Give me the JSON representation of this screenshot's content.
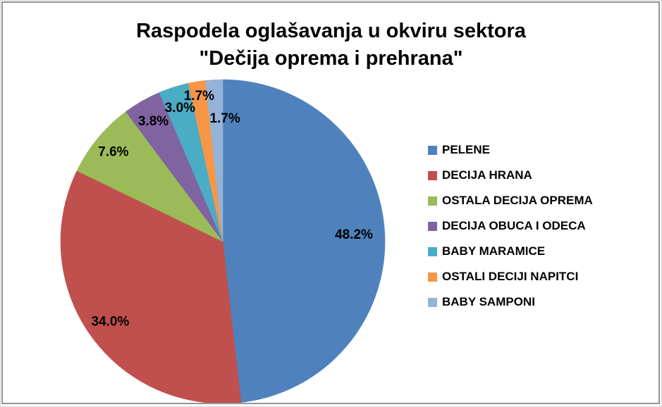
{
  "page": {
    "background_color": "#ffffff",
    "frame_border_color": "#969696"
  },
  "chart_data": {
    "type": "pie",
    "title": "Raspodela oglašavanja u okviru sektora \"Dečija oprema i prehrana\"",
    "title_lines": [
      "Raspodela oglašavanja u okviru sektora",
      "\"Dečija oprema i prehrana\""
    ],
    "categories": [
      "PELENE",
      "DECIJA HRANA",
      "OSTALA DECIJA OPREMA",
      "DECIJA OBUCA I ODECA",
      "BABY MARAMICE",
      "OSTALI DECIJI NAPITCI",
      "BABY SAMPONI"
    ],
    "values": [
      48.2,
      34.0,
      7.6,
      3.8,
      3.0,
      1.7,
      1.7
    ],
    "slices": [
      {
        "label": "PELENE",
        "value": 48.2,
        "display": "48.2%",
        "color": "#4F81BD"
      },
      {
        "label": "DECIJA HRANA",
        "value": 34.0,
        "display": "34.0%",
        "color": "#C0504D"
      },
      {
        "label": "OSTALA DECIJA OPREMA",
        "value": 7.6,
        "display": "7.6%",
        "color": "#9BBB59"
      },
      {
        "label": "DECIJA OBUCA I ODECA",
        "value": 3.8,
        "display": "3.8%",
        "color": "#8064A2"
      },
      {
        "label": "BABY MARAMICE",
        "value": 3.0,
        "display": "3.0%",
        "color": "#4BACC6"
      },
      {
        "label": "OSTALI DECIJI NAPITCI",
        "value": 1.7,
        "display": "1.7%",
        "color": "#F79646"
      },
      {
        "label": "BABY SAMPONI",
        "value": 1.7,
        "display": "1.7%",
        "color": "#95B3D7"
      }
    ],
    "value_format": "percent_one_decimal",
    "legend_position": "right",
    "start_angle_deg": 0,
    "direction": "clockwise",
    "label_color": "#000000"
  }
}
